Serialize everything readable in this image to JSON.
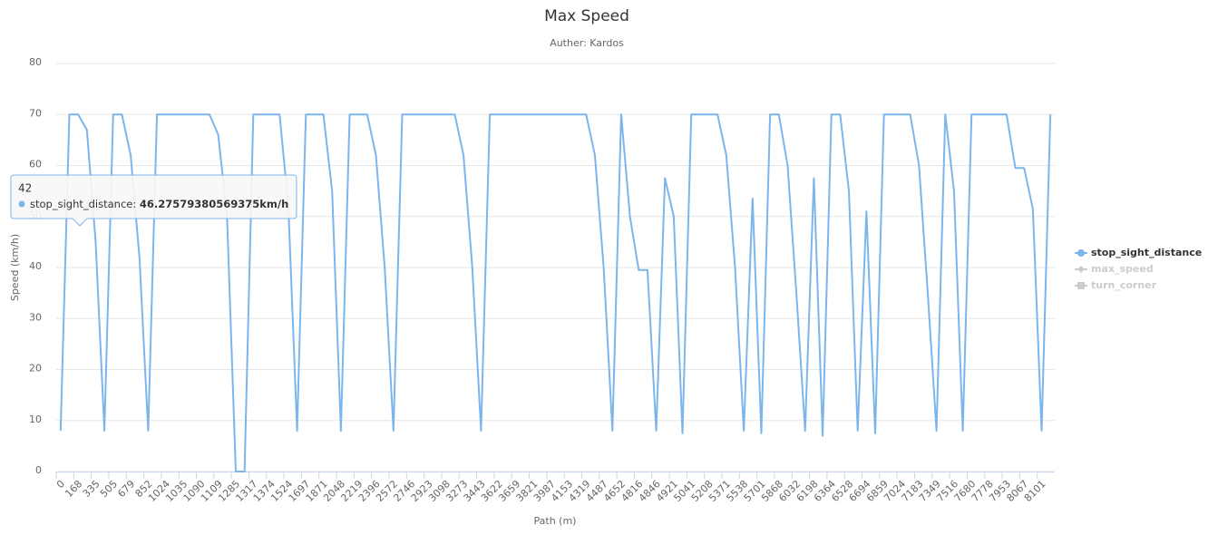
{
  "chart_data": {
    "type": "line",
    "title": "Max Speed",
    "subtitle": "Auther: Kardos",
    "x_label": "Path (m)",
    "y_label": "Speed (km/h)",
    "categories": [
      "0",
      null,
      "168",
      null,
      "335",
      null,
      "505",
      null,
      "679",
      null,
      "852",
      null,
      "1024",
      null,
      "1035",
      null,
      "1090",
      null,
      "1109",
      null,
      "1285",
      null,
      "1317",
      null,
      "1374",
      null,
      "1524",
      null,
      "1697",
      null,
      "1871",
      null,
      "2048",
      null,
      "2219",
      null,
      "2396",
      null,
      "2572",
      null,
      "2746",
      null,
      "2923",
      null,
      "3098",
      null,
      "3273",
      null,
      "3443",
      null,
      "3622",
      null,
      "3659",
      null,
      "3821",
      null,
      "3987",
      null,
      "4153",
      null,
      "4319",
      null,
      "4487",
      null,
      "4652",
      null,
      "4816",
      null,
      "4846",
      null,
      "4921",
      null,
      "5041",
      null,
      "5208",
      null,
      "5371",
      null,
      "5538",
      null,
      "5701",
      null,
      "5868",
      null,
      "6032",
      null,
      "6198",
      null,
      "6364",
      null,
      "6528",
      null,
      "6694",
      null,
      "6859",
      null,
      "7024",
      null,
      "7183",
      null,
      "7349",
      null,
      "7516",
      null,
      "7680",
      null,
      "7778",
      null,
      "7953",
      null,
      "8067",
      null,
      "8101",
      null
    ],
    "series": [
      {
        "name": "stop_sight_distance",
        "color": "#7cb5ec",
        "marker": "circle",
        "visible": true,
        "values": [
          8,
          70,
          70,
          67,
          45,
          8,
          70,
          70,
          62,
          42,
          8,
          70,
          70,
          70,
          70,
          70,
          70,
          70,
          66,
          50,
          0,
          0,
          70,
          70,
          70,
          70,
          52,
          8,
          70,
          70,
          70,
          55,
          8,
          70,
          70,
          70,
          62,
          40,
          8,
          70,
          70,
          70,
          70,
          70,
          70,
          70,
          62,
          40,
          8,
          70,
          70,
          70,
          70,
          70,
          70,
          70,
          70,
          70,
          70,
          70,
          70,
          62,
          40,
          8,
          70,
          50,
          39.5,
          39.5,
          8,
          57.5,
          50,
          7.5,
          70,
          70,
          70,
          70,
          62,
          40,
          8,
          53.5,
          7.5,
          70,
          70,
          60,
          35,
          8,
          57.5,
          7,
          70,
          70,
          55,
          8,
          51,
          7.5,
          70,
          70,
          70,
          70,
          60,
          35,
          8,
          70,
          55,
          8,
          70,
          70,
          70,
          70,
          70,
          59.5,
          59.5,
          51.5,
          8,
          70
        ]
      },
      {
        "name": "max_speed",
        "color": "#434348",
        "marker": "diamond",
        "visible": false
      },
      {
        "name": "turn_corner",
        "color": "#90ed7d",
        "marker": "square",
        "visible": false
      }
    ],
    "ylim": [
      0,
      80
    ],
    "yticks": [
      0,
      10,
      20,
      30,
      40,
      50,
      60,
      70,
      80
    ],
    "grid": true,
    "legend": "right",
    "tooltip": {
      "header": "42",
      "label": "stop_sight_distance: ",
      "value": "46.27579380569375km/h"
    }
  }
}
